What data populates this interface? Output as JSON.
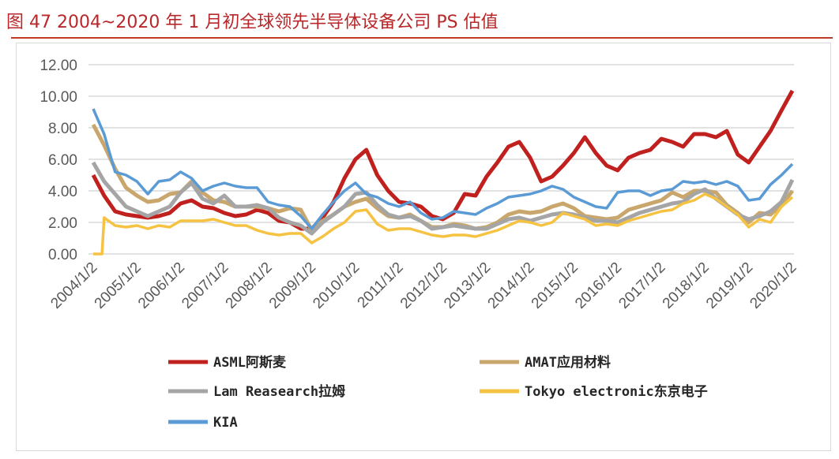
{
  "title": "图 47 2004~2020 年 1 月初全球领先半导体设备公司 PS 估值",
  "chart_data": {
    "type": "line",
    "title": "图 47 2004~2020 年 1 月初全球领先半导体设备公司 PS 估值",
    "xlabel": "",
    "ylabel": "",
    "ylim": [
      0,
      12
    ],
    "yticks": [
      "0.00",
      "2.00",
      "4.00",
      "6.00",
      "8.00",
      "10.00",
      "12.00"
    ],
    "xticks": [
      "2004/1/2",
      "2005/1/2",
      "2006/1/2",
      "2007/1/2",
      "2008/1/2",
      "2009/1/2",
      "2010/1/2",
      "2011/1/2",
      "2012/1/2",
      "2013/1/2",
      "2014/1/2",
      "2015/1/2",
      "2016/1/2",
      "2017/1/2",
      "2018/1/2",
      "2019/1/2",
      "2020/1/2"
    ],
    "grid": "horizontal",
    "legend_position": "bottom",
    "x": [
      "2004-01",
      "2004-04",
      "2004-07",
      "2004-10",
      "2005-01",
      "2005-04",
      "2005-07",
      "2005-10",
      "2006-01",
      "2006-04",
      "2006-07",
      "2006-10",
      "2007-01",
      "2007-04",
      "2007-07",
      "2007-10",
      "2008-01",
      "2008-04",
      "2008-07",
      "2008-10",
      "2009-01",
      "2009-04",
      "2009-07",
      "2009-10",
      "2010-01",
      "2010-04",
      "2010-07",
      "2010-10",
      "2011-01",
      "2011-04",
      "2011-07",
      "2011-10",
      "2012-01",
      "2012-04",
      "2012-07",
      "2012-10",
      "2013-01",
      "2013-04",
      "2013-07",
      "2013-10",
      "2014-01",
      "2014-04",
      "2014-07",
      "2014-10",
      "2015-01",
      "2015-04",
      "2015-07",
      "2015-10",
      "2016-01",
      "2016-04",
      "2016-07",
      "2016-10",
      "2017-01",
      "2017-04",
      "2017-07",
      "2017-10",
      "2018-01",
      "2018-04",
      "2018-07",
      "2018-10",
      "2019-01",
      "2019-04",
      "2019-07",
      "2019-10",
      "2020-01"
    ],
    "series": [
      {
        "name": "ASML阿斯麦",
        "color": "#C0201E",
        "width": 5,
        "values": [
          5.0,
          3.7,
          2.7,
          2.5,
          2.4,
          2.3,
          2.4,
          2.6,
          3.2,
          3.4,
          3.0,
          2.9,
          2.6,
          2.4,
          2.5,
          2.8,
          2.6,
          2.1,
          2.0,
          1.6,
          1.6,
          2.3,
          3.3,
          4.8,
          6.0,
          6.6,
          5.0,
          4.0,
          3.3,
          3.2,
          3.0,
          2.4,
          2.2,
          2.6,
          3.8,
          3.7,
          4.9,
          5.8,
          6.8,
          7.1,
          6.1,
          4.6,
          4.9,
          5.6,
          6.4,
          7.4,
          6.4,
          5.6,
          5.3,
          6.1,
          6.4,
          6.6,
          7.3,
          7.1,
          6.8,
          7.6,
          7.6,
          7.4,
          7.8,
          6.3,
          5.8,
          6.8,
          7.8,
          9.1,
          10.35
        ]
      },
      {
        "name": "AMAT应用材料",
        "color": "#C9A66B",
        "width": 5,
        "values": [
          8.2,
          6.9,
          5.4,
          4.2,
          3.7,
          3.3,
          3.4,
          3.8,
          3.9,
          4.6,
          3.9,
          3.4,
          3.3,
          3.0,
          3.0,
          3.0,
          2.9,
          2.7,
          2.9,
          2.8,
          1.5,
          2.1,
          2.5,
          3.0,
          3.3,
          3.5,
          2.9,
          2.4,
          2.3,
          2.5,
          2.1,
          1.7,
          1.7,
          1.9,
          1.8,
          1.6,
          1.7,
          2.0,
          2.5,
          2.7,
          2.6,
          2.7,
          3.0,
          3.2,
          2.9,
          2.4,
          2.3,
          2.2,
          2.3,
          2.8,
          3.0,
          3.2,
          3.4,
          3.9,
          3.6,
          4.0,
          4.0,
          3.9,
          3.1,
          2.6,
          2.0,
          2.6,
          2.5,
          3.1,
          4.0
        ]
      },
      {
        "name": "Lam Reasearch拉姆",
        "color": "#A5A5A5",
        "width": 5,
        "values": [
          5.8,
          4.6,
          3.8,
          3.0,
          2.7,
          2.4,
          2.7,
          3.0,
          3.9,
          4.5,
          3.5,
          3.2,
          3.7,
          3.0,
          3.0,
          3.1,
          2.9,
          2.3,
          2.0,
          1.8,
          1.3,
          2.0,
          2.5,
          3.0,
          3.8,
          3.9,
          3.1,
          2.5,
          2.3,
          2.4,
          2.1,
          1.6,
          1.7,
          1.8,
          1.7,
          1.6,
          1.6,
          1.9,
          2.2,
          2.3,
          2.1,
          2.3,
          2.5,
          2.6,
          2.5,
          2.3,
          2.1,
          2.1,
          2.0,
          2.3,
          2.6,
          2.8,
          3.0,
          3.2,
          3.3,
          3.8,
          4.1,
          3.5,
          3.0,
          2.5,
          2.2,
          2.4,
          2.7,
          3.3,
          4.7
        ]
      },
      {
        "name": "Tokyo electronic东京电子",
        "color": "#F5C242",
        "width": 3.5,
        "values": [
          0,
          2.3,
          1.8,
          1.7,
          1.8,
          1.6,
          1.8,
          1.7,
          2.1,
          2.1,
          2.1,
          2.2,
          2.0,
          1.8,
          1.8,
          1.5,
          1.3,
          1.2,
          1.3,
          1.3,
          0.7,
          1.1,
          1.6,
          2.0,
          2.7,
          2.8,
          1.9,
          1.5,
          1.6,
          1.6,
          1.4,
          1.2,
          1.1,
          1.2,
          1.2,
          1.1,
          1.3,
          1.5,
          1.8,
          2.1,
          2.0,
          1.8,
          2.0,
          2.6,
          2.4,
          2.2,
          1.8,
          1.9,
          1.8,
          2.1,
          2.3,
          2.5,
          2.7,
          2.8,
          3.2,
          3.4,
          3.8,
          3.5,
          3.0,
          2.5,
          1.7,
          2.2,
          2.0,
          3.0,
          3.6
        ]
      },
      {
        "name": "KIA",
        "color": "#5B9BD5",
        "width": 3.5,
        "values": [
          9.2,
          7.6,
          5.2,
          5.0,
          4.6,
          3.8,
          4.6,
          4.7,
          5.2,
          4.8,
          4.0,
          4.3,
          4.5,
          4.3,
          4.2,
          4.2,
          3.3,
          3.1,
          3.0,
          2.4,
          1.6,
          2.5,
          3.3,
          4.0,
          4.5,
          3.8,
          3.6,
          3.2,
          3.0,
          3.3,
          2.6,
          2.2,
          2.3,
          2.7,
          2.6,
          2.5,
          2.9,
          3.2,
          3.6,
          3.7,
          3.8,
          4.0,
          4.3,
          4.1,
          3.6,
          3.3,
          3.0,
          2.9,
          3.9,
          4.0,
          4.0,
          3.7,
          4.0,
          4.1,
          4.6,
          4.5,
          4.6,
          4.4,
          4.6,
          4.3,
          3.4,
          3.5,
          4.4,
          5.0,
          5.7
        ]
      }
    ]
  }
}
